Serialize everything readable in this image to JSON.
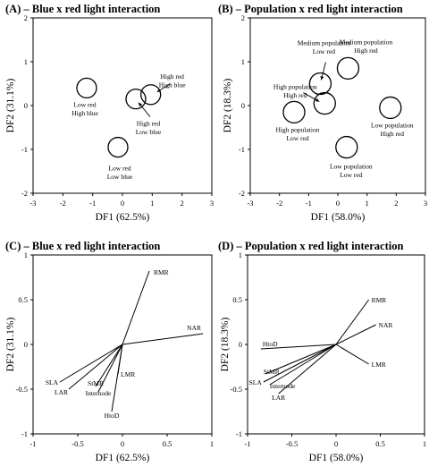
{
  "chart_data": [
    {
      "type": "scatter",
      "title": "(A) – Blue x red light interaction",
      "xlabel": "DF1 (62.5%)",
      "ylabel": "DF2 (31.1%)",
      "xlim": [
        -3,
        3
      ],
      "ylim": [
        -2,
        2
      ],
      "xticks": [
        -3,
        -2,
        -1,
        0,
        1,
        2,
        3
      ],
      "yticks": [
        -2,
        -1,
        0,
        1,
        2
      ],
      "points": [
        {
          "x": -1.2,
          "y": 0.4,
          "label": [
            "Low red",
            "High blue"
          ]
        },
        {
          "x": -0.15,
          "y": -0.95,
          "label": [
            "Low red",
            "Low blue"
          ]
        },
        {
          "x": 0.45,
          "y": 0.15,
          "label": [
            "High red",
            "Low blue"
          ]
        },
        {
          "x": 0.95,
          "y": 0.25,
          "label": [
            "High red",
            "High blue"
          ]
        }
      ]
    },
    {
      "type": "scatter",
      "title": "(B) – Population x red light interaction",
      "xlabel": "DF1 (58.0%)",
      "ylabel": "DF2 (18.3%)",
      "xlim": [
        -3,
        3
      ],
      "ylim": [
        -2,
        2
      ],
      "xticks": [
        -3,
        -2,
        -1,
        0,
        1,
        2,
        3
      ],
      "yticks": [
        -2,
        -1,
        0,
        1,
        2
      ],
      "points": [
        {
          "x": -1.5,
          "y": -0.15,
          "label": [
            "High population",
            "Low red"
          ]
        },
        {
          "x": -0.6,
          "y": 0.5,
          "label": [
            "Medium population",
            "Low red"
          ]
        },
        {
          "x": -0.45,
          "y": 0.05,
          "label": [
            "High population",
            "High red"
          ]
        },
        {
          "x": 0.3,
          "y": -0.95,
          "label": [
            "Low population",
            "Low red"
          ]
        },
        {
          "x": 0.35,
          "y": 0.85,
          "label": [
            "Medium population",
            "High red"
          ]
        },
        {
          "x": 1.8,
          "y": -0.05,
          "label": [
            "Low population",
            "High red"
          ]
        }
      ]
    },
    {
      "type": "line",
      "subtype": "biplot-vectors",
      "title": "(C) – Blue x red light interaction",
      "xlabel": "DF1 (62.5%)",
      "ylabel": "DF2 (31.1%)",
      "xlim": [
        -1,
        1
      ],
      "ylim": [
        -1,
        1
      ],
      "xticks": [
        -1,
        -0.5,
        0,
        0.5,
        1
      ],
      "yticks": [
        -1,
        -0.5,
        0,
        0.5,
        1
      ],
      "vectors": [
        {
          "name": "RMR",
          "x": 0.3,
          "y": 0.82
        },
        {
          "name": "NAR",
          "x": 0.9,
          "y": 0.12
        },
        {
          "name": "LMR",
          "x": -0.05,
          "y": -0.33
        },
        {
          "name": "SLA",
          "x": -0.7,
          "y": -0.42
        },
        {
          "name": "LAR",
          "x": -0.6,
          "y": -0.5
        },
        {
          "name": "StMR",
          "x": -0.3,
          "y": -0.47
        },
        {
          "name": "Internode",
          "x": -0.27,
          "y": -0.53
        },
        {
          "name": "HtoD",
          "x": -0.12,
          "y": -0.75
        }
      ]
    },
    {
      "type": "line",
      "subtype": "biplot-vectors",
      "title": "(D) – Population x red light interaction",
      "xlabel": "DF1 (58.0%)",
      "ylabel": "DF2 (18.3%)",
      "xlim": [
        -1,
        1
      ],
      "ylim": [
        -1,
        1
      ],
      "xticks": [
        -1,
        -0.5,
        0,
        0.5,
        1
      ],
      "yticks": [
        -1,
        -0.5,
        0,
        0.5,
        1
      ],
      "vectors": [
        {
          "name": "RMR",
          "x": 0.37,
          "y": 0.5
        },
        {
          "name": "NAR",
          "x": 0.45,
          "y": 0.22
        },
        {
          "name": "LMR",
          "x": 0.37,
          "y": -0.22
        },
        {
          "name": "HtoD",
          "x": -0.85,
          "y": -0.05
        },
        {
          "name": "StMR",
          "x": -0.8,
          "y": -0.33
        },
        {
          "name": "SLA",
          "x": -0.82,
          "y": -0.42
        },
        {
          "name": "Internode",
          "x": -0.75,
          "y": -0.45
        },
        {
          "name": "LAR",
          "x": -0.65,
          "y": -0.55
        }
      ]
    }
  ]
}
